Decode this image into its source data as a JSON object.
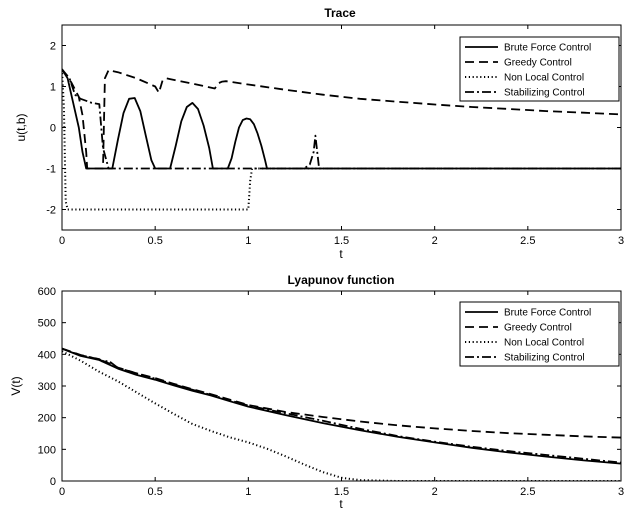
{
  "chart_data": [
    {
      "type": "line",
      "title": "Trace",
      "xlabel": "t",
      "ylabel": "u(t,b)",
      "xlim": [
        0,
        3
      ],
      "ylim": [
        -2.5,
        2.5
      ],
      "xticks": [
        0,
        0.5,
        1,
        1.5,
        2,
        2.5,
        3
      ],
      "xtick_labels": [
        "0",
        "0.5",
        "1",
        "1.5",
        "2",
        "2.5",
        "3"
      ],
      "yticks": [
        -2,
        -1,
        0,
        1,
        2
      ],
      "ytick_labels": [
        "-2",
        "-1",
        "0",
        "1",
        "2"
      ],
      "grid": false,
      "legend_position": "top-right",
      "series": [
        {
          "name": "Brute Force Control",
          "style": "solid",
          "x": [
            0,
            0.03,
            0.06,
            0.09,
            0.11,
            0.13,
            0.15,
            0.18,
            0.21,
            0.24,
            0.27,
            0.3,
            0.33,
            0.36,
            0.39,
            0.42,
            0.45,
            0.48,
            0.5,
            0.52,
            0.55,
            0.58,
            0.61,
            0.64,
            0.67,
            0.7,
            0.73,
            0.76,
            0.79,
            0.81,
            0.83,
            0.85,
            0.87,
            0.89,
            0.91,
            0.93,
            0.95,
            0.97,
            0.99,
            1.01,
            1.03,
            1.05,
            1.07,
            1.09,
            1.1,
            1.2,
            1.5,
            2,
            2.5,
            3
          ],
          "y": [
            1.42,
            1.2,
            0.6,
            0.0,
            -0.6,
            -1.0,
            -1.0,
            -1.0,
            -1.0,
            -1.0,
            -1.0,
            -0.3,
            0.35,
            0.7,
            0.72,
            0.4,
            -0.2,
            -0.8,
            -1.0,
            -1.0,
            -1.0,
            -1.0,
            -0.45,
            0.15,
            0.5,
            0.6,
            0.45,
            0.05,
            -0.5,
            -1.0,
            -1.0,
            -1.0,
            -1.0,
            -1.0,
            -0.75,
            -0.35,
            0.0,
            0.18,
            0.22,
            0.2,
            0.08,
            -0.15,
            -0.45,
            -0.8,
            -1.0,
            -1.0,
            -1.0,
            -1.0,
            -1.0,
            -1.0
          ]
        },
        {
          "name": "Greedy Control",
          "style": "dashed",
          "x": [
            0,
            0.05,
            0.09,
            0.11,
            0.13,
            0.135,
            0.2,
            0.22,
            0.23,
            0.25,
            0.3,
            0.4,
            0.5,
            0.52,
            0.54,
            0.56,
            0.58,
            0.7,
            0.82,
            0.84,
            0.86,
            0.88,
            1.0,
            1.2,
            1.4,
            1.6,
            1.8,
            2.0,
            2.2,
            2.4,
            2.6,
            2.8,
            3.0
          ],
          "y": [
            1.42,
            1.1,
            0.75,
            0.3,
            -0.6,
            -1.0,
            -1.0,
            -1.0,
            1.2,
            1.4,
            1.35,
            1.2,
            1.0,
            0.85,
            1.15,
            1.2,
            1.18,
            1.07,
            0.95,
            1.08,
            1.12,
            1.13,
            1.05,
            0.92,
            0.8,
            0.7,
            0.63,
            0.56,
            0.5,
            0.45,
            0.4,
            0.36,
            0.32
          ]
        },
        {
          "name": "Non Local Control",
          "style": "dotted",
          "x": [
            0,
            0.01,
            0.02,
            0.03,
            0.5,
            1.0,
            1.01,
            1.02,
            1.5,
            2.0,
            2.5,
            3.0
          ],
          "y": [
            1.42,
            0.5,
            -1.8,
            -2.0,
            -2.0,
            -2.0,
            -1.3,
            -1.0,
            -1.0,
            -1.0,
            -1.0,
            -1.0
          ]
        },
        {
          "name": "Stabilizing Control",
          "style": "dashdot",
          "x": [
            0,
            0.04,
            0.07,
            0.1,
            0.13,
            0.16,
            0.2,
            0.22,
            0.25,
            0.3,
            0.4,
            0.5,
            0.6,
            0.7,
            0.8,
            0.9,
            1.0,
            1.1,
            1.2,
            1.3,
            1.33,
            1.35,
            1.36,
            1.38,
            1.5,
            2.0,
            2.5,
            3.0
          ],
          "y": [
            1.42,
            1.2,
            0.8,
            0.7,
            0.65,
            0.6,
            0.57,
            -0.5,
            -1.0,
            -1.0,
            -1.0,
            -1.0,
            -1.0,
            -1.0,
            -1.0,
            -1.0,
            -1.0,
            -1.0,
            -1.0,
            -1.0,
            -0.9,
            -0.6,
            -0.2,
            -1.0,
            -1.0,
            -1.0,
            -1.0,
            -1.0
          ]
        }
      ]
    },
    {
      "type": "line",
      "title": "Lyapunov function",
      "xlabel": "t",
      "ylabel": "V(t)",
      "xlim": [
        0,
        3
      ],
      "ylim": [
        0,
        600
      ],
      "xticks": [
        0,
        0.5,
        1,
        1.5,
        2,
        2.5,
        3
      ],
      "xtick_labels": [
        "0",
        "0.5",
        "1",
        "1.5",
        "2",
        "2.5",
        "3"
      ],
      "yticks": [
        0,
        100,
        200,
        300,
        400,
        500,
        600
      ],
      "ytick_labels": [
        "0",
        "100",
        "200",
        "300",
        "400",
        "500",
        "600"
      ],
      "grid": false,
      "legend_position": "top-right",
      "series": [
        {
          "name": "Brute Force Control",
          "style": "solid",
          "x": [
            0,
            0.1,
            0.2,
            0.3,
            0.4,
            0.5,
            0.6,
            0.7,
            0.8,
            0.9,
            1.0,
            1.2,
            1.4,
            1.6,
            1.8,
            2.0,
            2.2,
            2.4,
            2.6,
            2.8,
            3.0
          ],
          "y": [
            418,
            395,
            382,
            355,
            335,
            320,
            302,
            285,
            270,
            252,
            235,
            208,
            183,
            160,
            140,
            122,
            105,
            90,
            77,
            65,
            55
          ]
        },
        {
          "name": "Greedy Control",
          "style": "dashed",
          "x": [
            0,
            0.1,
            0.2,
            0.25,
            0.3,
            0.4,
            0.5,
            0.6,
            0.7,
            0.8,
            0.9,
            1.0,
            1.2,
            1.4,
            1.6,
            1.8,
            2.0,
            2.2,
            2.4,
            2.6,
            2.8,
            3.0
          ],
          "y": [
            418,
            398,
            384,
            372,
            358,
            340,
            325,
            307,
            290,
            274,
            257,
            240,
            218,
            202,
            188,
            176,
            166,
            158,
            151,
            146,
            141,
            137
          ]
        },
        {
          "name": "Non Local Control",
          "style": "dotted",
          "x": [
            0,
            0.1,
            0.2,
            0.3,
            0.4,
            0.5,
            0.6,
            0.7,
            0.8,
            0.9,
            1.0,
            1.1,
            1.2,
            1.3,
            1.4,
            1.5,
            1.6,
            1.8,
            2.0,
            2.5,
            3.0
          ],
          "y": [
            410,
            380,
            345,
            315,
            280,
            245,
            212,
            180,
            158,
            138,
            122,
            102,
            78,
            52,
            28,
            10,
            3,
            0,
            0,
            0,
            0
          ]
        },
        {
          "name": "Stabilizing Control",
          "style": "dashdot",
          "x": [
            0,
            0.1,
            0.2,
            0.22,
            0.25,
            0.3,
            0.4,
            0.5,
            0.6,
            0.7,
            0.8,
            0.9,
            1.0,
            1.2,
            1.4,
            1.6,
            1.8,
            2.0,
            2.2,
            2.4,
            2.6,
            2.8,
            3.0
          ],
          "y": [
            418,
            397,
            385,
            376,
            380,
            357,
            340,
            323,
            305,
            288,
            272,
            255,
            238,
            214,
            190,
            165,
            142,
            124,
            108,
            94,
            82,
            70,
            58
          ]
        }
      ]
    }
  ]
}
